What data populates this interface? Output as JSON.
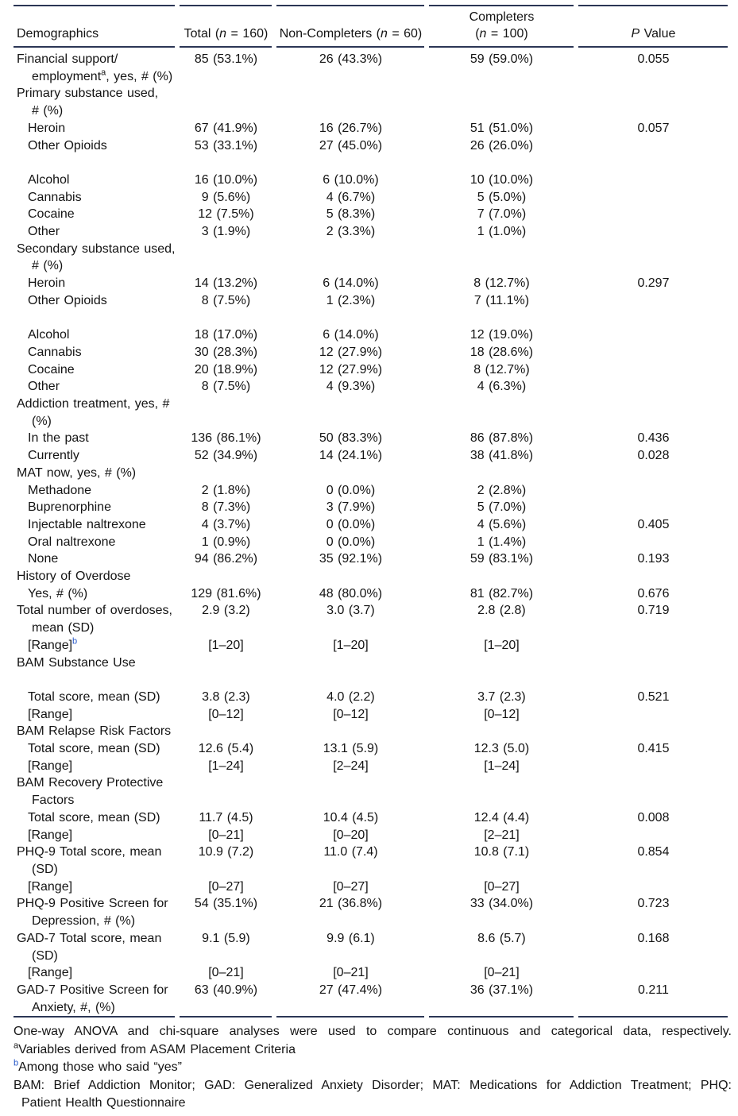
{
  "page": {
    "background": "#ffffff",
    "text_color": "#141414",
    "rule_color": "#2b3655",
    "superscript_blue": "#2456c8"
  },
  "table": {
    "header": {
      "demographics": "Demographics",
      "total": {
        "pre": "Total (",
        "n": "n",
        "post": " = 160)"
      },
      "non_completers": {
        "pre": "Non-Completers (",
        "n": "n",
        "post": " = 60)"
      },
      "completers": {
        "line1": "Completers",
        "pre": "(",
        "n": "n",
        "post": " = 100)"
      },
      "p_value": {
        "p": "P",
        "post": " Value"
      }
    },
    "rows": [
      {
        "lines": [
          {
            "text": "Financial support/"
          },
          {
            "text": "employment",
            "sup": "a",
            "after": ", yes, # (%)"
          }
        ],
        "indent": 0,
        "cells": [
          "85 (53.1%)",
          "26 (43.3%)",
          "59 (59.0%)",
          "0.055"
        ]
      },
      {
        "lines": [
          {
            "text": "Primary substance used,"
          },
          {
            "text": "# (%)"
          }
        ],
        "indent": 0,
        "cells": [
          "",
          "",
          "",
          ""
        ]
      },
      {
        "lines": [
          {
            "text": "Heroin"
          }
        ],
        "indent": 1,
        "cells": [
          "67 (41.9%)",
          "16 (26.7%)",
          "51 (51.0%)",
          "0.057"
        ]
      },
      {
        "lines": [
          {
            "text": "Other Opioids"
          }
        ],
        "indent": 1,
        "cells": [
          "53 (33.1%)",
          "27 (45.0%)",
          "26 (26.0%)",
          ""
        ]
      },
      {
        "spacer": true
      },
      {
        "lines": [
          {
            "text": "Alcohol"
          }
        ],
        "indent": 1,
        "cells": [
          "16 (10.0%)",
          "6 (10.0%)",
          "10 (10.0%)",
          ""
        ]
      },
      {
        "lines": [
          {
            "text": "Cannabis"
          }
        ],
        "indent": 1,
        "cells": [
          "9 (5.6%)",
          "4 (6.7%)",
          "5 (5.0%)",
          ""
        ]
      },
      {
        "lines": [
          {
            "text": "Cocaine"
          }
        ],
        "indent": 1,
        "cells": [
          "12 (7.5%)",
          "5 (8.3%)",
          "7 (7.0%)",
          ""
        ]
      },
      {
        "lines": [
          {
            "text": "Other"
          }
        ],
        "indent": 1,
        "cells": [
          "3 (1.9%)",
          "2 (3.3%)",
          "1 (1.0%)",
          ""
        ]
      },
      {
        "lines": [
          {
            "text": "Secondary substance used,"
          },
          {
            "text": "# (%)"
          }
        ],
        "indent": 0,
        "cells": [
          "",
          "",
          "",
          ""
        ]
      },
      {
        "lines": [
          {
            "text": "Heroin"
          }
        ],
        "indent": 1,
        "cells": [
          "14 (13.2%)",
          "6 (14.0%)",
          "8 (12.7%)",
          "0.297"
        ]
      },
      {
        "lines": [
          {
            "text": "Other Opioids"
          }
        ],
        "indent": 1,
        "cells": [
          "8 (7.5%)",
          "1 (2.3%)",
          "7 (11.1%)",
          ""
        ]
      },
      {
        "spacer": true
      },
      {
        "lines": [
          {
            "text": "Alcohol"
          }
        ],
        "indent": 1,
        "cells": [
          "18 (17.0%)",
          "6 (14.0%)",
          "12 (19.0%)",
          ""
        ]
      },
      {
        "lines": [
          {
            "text": "Cannabis"
          }
        ],
        "indent": 1,
        "cells": [
          "30 (28.3%)",
          "12 (27.9%)",
          "18 (28.6%)",
          ""
        ]
      },
      {
        "lines": [
          {
            "text": "Cocaine"
          }
        ],
        "indent": 1,
        "cells": [
          "20 (18.9%)",
          "12 (27.9%)",
          "8 (12.7%)",
          ""
        ]
      },
      {
        "lines": [
          {
            "text": "Other"
          }
        ],
        "indent": 1,
        "cells": [
          "8 (7.5%)",
          "4 (9.3%)",
          "4 (6.3%)",
          ""
        ]
      },
      {
        "lines": [
          {
            "text": "Addiction treatment, yes, #"
          },
          {
            "text": "(%)"
          }
        ],
        "indent": 0,
        "cells": [
          "",
          "",
          "",
          ""
        ]
      },
      {
        "lines": [
          {
            "text": "In the past"
          }
        ],
        "indent": 1,
        "cells": [
          "136 (86.1%)",
          "50 (83.3%)",
          "86 (87.8%)",
          "0.436"
        ]
      },
      {
        "lines": [
          {
            "text": "Currently"
          }
        ],
        "indent": 1,
        "cells": [
          "52 (34.9%)",
          "14 (24.1%)",
          "38 (41.8%)",
          "0.028"
        ]
      },
      {
        "lines": [
          {
            "text": "MAT now, yes, # (%)"
          }
        ],
        "indent": 0,
        "cells": [
          "",
          "",
          "",
          ""
        ]
      },
      {
        "lines": [
          {
            "text": "Methadone"
          }
        ],
        "indent": 1,
        "cells": [
          "2 (1.8%)",
          "0 (0.0%)",
          "2 (2.8%)",
          ""
        ]
      },
      {
        "lines": [
          {
            "text": "Buprenorphine"
          }
        ],
        "indent": 1,
        "cells": [
          "8 (7.3%)",
          "3 (7.9%)",
          "5 (7.0%)",
          ""
        ]
      },
      {
        "lines": [
          {
            "text": "Injectable naltrexone"
          }
        ],
        "indent": 1,
        "cells": [
          "4 (3.7%)",
          "0 (0.0%)",
          "4 (5.6%)",
          "0.405"
        ]
      },
      {
        "lines": [
          {
            "text": "Oral naltrexone"
          }
        ],
        "indent": 1,
        "cells": [
          "1 (0.9%)",
          "0 (0.0%)",
          "1 (1.4%)",
          ""
        ]
      },
      {
        "lines": [
          {
            "text": "None"
          }
        ],
        "indent": 1,
        "cells": [
          "94 (86.2%)",
          "35 (92.1%)",
          "59 (83.1%)",
          "0.193"
        ]
      },
      {
        "lines": [
          {
            "text": "History of Overdose"
          }
        ],
        "indent": 0,
        "cells": [
          "",
          "",
          "",
          ""
        ]
      },
      {
        "lines": [
          {
            "text": "Yes, # (%)"
          }
        ],
        "indent": 1,
        "cells": [
          "129 (81.6%)",
          "48 (80.0%)",
          "81 (82.7%)",
          "0.676"
        ]
      },
      {
        "lines": [
          {
            "text": "Total number of overdoses,"
          },
          {
            "text": "mean (SD)"
          }
        ],
        "indent": 0,
        "cells": [
          "2.9 (3.2)",
          "3.0 (3.7)",
          "2.8 (2.8)",
          "0.719"
        ]
      },
      {
        "lines": [
          {
            "text": "[Range]",
            "sup": "b",
            "sup_blue": true
          }
        ],
        "indent": 1,
        "cells": [
          "[1–20]",
          "[1–20]",
          "[1–20]",
          ""
        ]
      },
      {
        "lines": [
          {
            "text": "BAM Substance Use"
          }
        ],
        "indent": 0,
        "cells": [
          "",
          "",
          "",
          ""
        ]
      },
      {
        "spacer": true
      },
      {
        "lines": [
          {
            "text": "Total score, mean (SD)"
          }
        ],
        "indent": 1,
        "cells": [
          "3.8 (2.3)",
          "4.0 (2.2)",
          "3.7 (2.3)",
          "0.521"
        ]
      },
      {
        "lines": [
          {
            "text": "[Range]"
          }
        ],
        "indent": 1,
        "cells": [
          "[0–12]",
          "[0–12]",
          "[0–12]",
          ""
        ]
      },
      {
        "lines": [
          {
            "text": "BAM Relapse Risk Factors"
          }
        ],
        "indent": 0,
        "cells": [
          "",
          "",
          "",
          ""
        ]
      },
      {
        "lines": [
          {
            "text": "Total score, mean (SD)"
          }
        ],
        "indent": 1,
        "cells": [
          "12.6 (5.4)",
          "13.1 (5.9)",
          "12.3 (5.0)",
          "0.415"
        ]
      },
      {
        "lines": [
          {
            "text": "[Range]"
          }
        ],
        "indent": 1,
        "cells": [
          "[1–24]",
          "[2–24]",
          "[1–24]",
          ""
        ]
      },
      {
        "lines": [
          {
            "text": "BAM Recovery Protective"
          },
          {
            "text": "Factors"
          }
        ],
        "indent": 0,
        "cells": [
          "",
          "",
          "",
          ""
        ]
      },
      {
        "lines": [
          {
            "text": "Total score, mean (SD)"
          }
        ],
        "indent": 1,
        "cells": [
          "11.7 (4.5)",
          "10.4 (4.5)",
          "12.4 (4.4)",
          "0.008"
        ]
      },
      {
        "lines": [
          {
            "text": "[Range]"
          }
        ],
        "indent": 1,
        "cells": [
          "[0–21]",
          "[0–20]",
          "[2–21]",
          ""
        ]
      },
      {
        "lines": [
          {
            "text": "PHQ-9 Total score, mean"
          },
          {
            "text": "(SD)"
          }
        ],
        "indent": 0,
        "cells": [
          "10.9 (7.2)",
          "11.0 (7.4)",
          "10.8 (7.1)",
          "0.854"
        ]
      },
      {
        "lines": [
          {
            "text": "[Range]"
          }
        ],
        "indent": 1,
        "cells": [
          "[0–27]",
          "[0–27]",
          "[0–27]",
          ""
        ]
      },
      {
        "lines": [
          {
            "text": "PHQ-9 Positive Screen for"
          },
          {
            "text": "Depression, # (%)"
          }
        ],
        "indent": 0,
        "cells": [
          "54 (35.1%)",
          "21 (36.8%)",
          "33 (34.0%)",
          "0.723"
        ]
      },
      {
        "lines": [
          {
            "text": "GAD-7 Total score, mean"
          },
          {
            "text": "(SD)"
          }
        ],
        "indent": 0,
        "cells": [
          "9.1 (5.9)",
          "9.9 (6.1)",
          "8.6 (5.7)",
          "0.168"
        ]
      },
      {
        "lines": [
          {
            "text": "[Range]"
          }
        ],
        "indent": 1,
        "cells": [
          "[0–21]",
          "[0–21]",
          "[0–21]",
          ""
        ]
      },
      {
        "lines": [
          {
            "text": "GAD-7 Positive Screen for"
          },
          {
            "text": "Anxiety, #, (%)"
          }
        ],
        "indent": 0,
        "cells": [
          "63 (40.9%)",
          "27 (47.4%)",
          "36 (37.1%)",
          "0.211"
        ]
      }
    ]
  },
  "footnotes": {
    "line1": "One-way ANOVA and chi-square analyses were used to compare continuous and categorical data, respectively.",
    "note_a": {
      "sup": "a",
      "text": "Variables derived from ASAM Placement Criteria"
    },
    "note_b": {
      "sup": "b",
      "text": "Among those who said “yes”"
    },
    "abbrev_line1": "BAM: Brief Addiction Monitor; GAD: Generalized Anxiety Disorder; MAT:  Medications for Addiction Treatment; PHQ:",
    "abbrev_line2": "Patient Health Questionnaire"
  }
}
